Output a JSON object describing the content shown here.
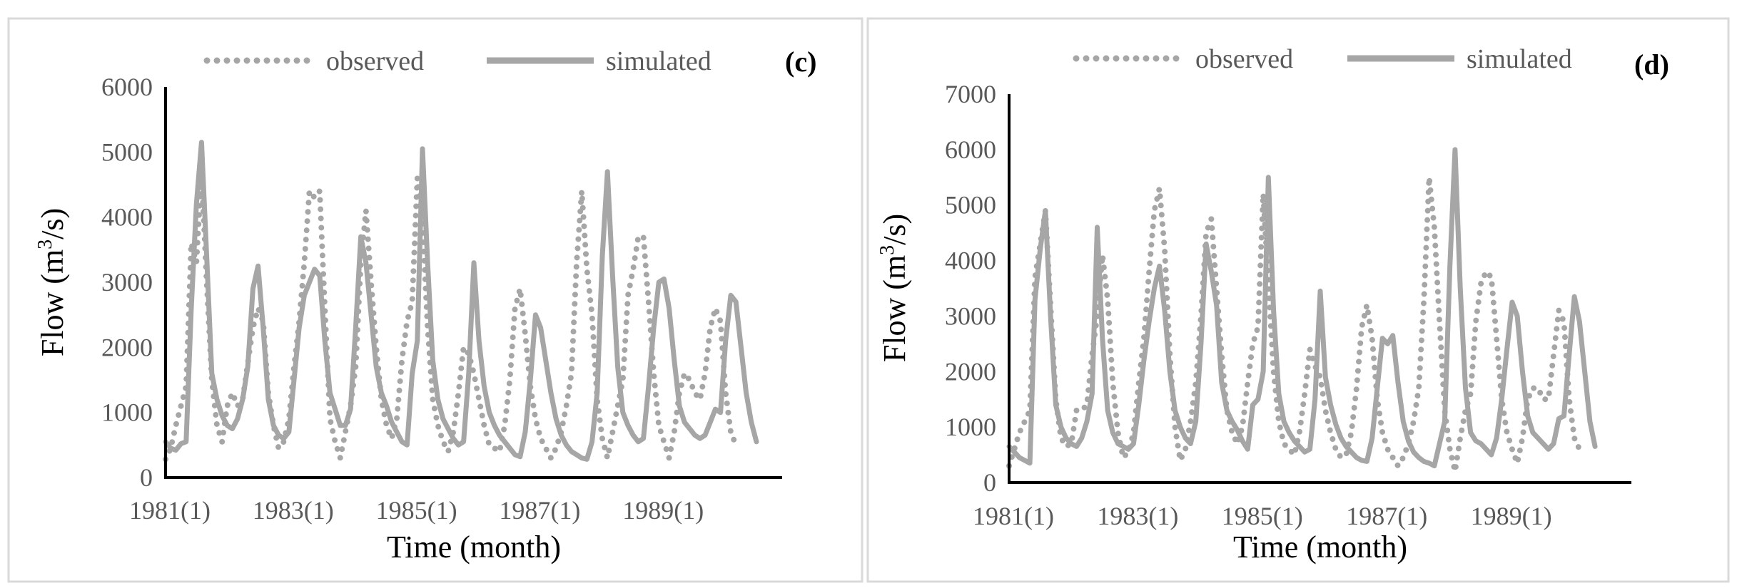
{
  "colors": {
    "series": "#a6a6a6",
    "axis": "#000000",
    "tick": "#595959",
    "frame": "#d9d9d9"
  },
  "chart_data": [
    {
      "panel_label": "(c)",
      "type": "line",
      "xlabel": "Time (month)",
      "ylabel": {
        "base": "Flow (m",
        "sup": "3",
        "tail": "/s)"
      },
      "ylim": [
        0,
        6000
      ],
      "yticks": [
        "0",
        "1000",
        "2000",
        "3000",
        "4000",
        "5000",
        "6000"
      ],
      "xlim": [
        0,
        120
      ],
      "xticks": [
        {
          "at": 0,
          "label": "1981(1)"
        },
        {
          "at": 24,
          "label": "1983(1)"
        },
        {
          "at": 48,
          "label": "1985(1)"
        },
        {
          "at": 72,
          "label": "1987(1)"
        },
        {
          "at": 96,
          "label": "1989(1)"
        }
      ],
      "legend": {
        "placement": "top",
        "items": [
          "observed",
          "simulated"
        ]
      },
      "series": [
        {
          "name": "observed",
          "style": "dotted",
          "values": [
            280,
            450,
            800,
            1100,
            1400,
            3600,
            3300,
            4700,
            3000,
            1500,
            800,
            550,
            1100,
            1300,
            1100,
            1200,
            1750,
            2300,
            2600,
            2400,
            1300,
            800,
            450,
            550,
            900,
            1700,
            2400,
            3300,
            4400,
            4300,
            4400,
            2600,
            900,
            550,
            300,
            700,
            1100,
            1700,
            3300,
            4100,
            3000,
            2000,
            1200,
            800,
            600,
            900,
            1800,
            2400,
            2700,
            4600,
            3900,
            2300,
            1200,
            800,
            550,
            400,
            700,
            1300,
            2000,
            1900,
            1600,
            1200,
            800,
            500,
            450,
            400,
            800,
            1500,
            2600,
            2900,
            2200,
            1400,
            900,
            600,
            450,
            300,
            450,
            700,
            1100,
            1600,
            3300,
            4400,
            3200,
            2500,
            1200,
            600,
            300,
            700,
            1100,
            1500,
            2800,
            3200,
            3700,
            3700,
            2700,
            1600,
            800,
            550,
            300,
            700,
            1300,
            1600,
            1500,
            1300,
            1200,
            1600,
            2300,
            2600,
            2400,
            1300,
            700,
            500
          ]
        },
        {
          "name": "simulated",
          "style": "solid",
          "values": [
            550,
            450,
            420,
            520,
            550,
            2600,
            4200,
            5150,
            3400,
            1600,
            1200,
            950,
            800,
            750,
            900,
            1200,
            1700,
            2900,
            3250,
            2300,
            1200,
            800,
            650,
            600,
            700,
            1500,
            2300,
            2800,
            3000,
            3200,
            3100,
            2100,
            1300,
            1050,
            800,
            800,
            1050,
            2300,
            3700,
            3300,
            2500,
            1700,
            1300,
            1100,
            850,
            700,
            550,
            500,
            1600,
            2100,
            5050,
            3300,
            1800,
            1200,
            900,
            750,
            600,
            500,
            550,
            1600,
            3300,
            2100,
            1400,
            1000,
            800,
            650,
            550,
            450,
            350,
            320,
            700,
            1500,
            2500,
            2300,
            1800,
            1300,
            900,
            650,
            500,
            400,
            350,
            300,
            280,
            550,
            1300,
            3400,
            4700,
            3100,
            1700,
            1000,
            800,
            650,
            550,
            600,
            1400,
            2300,
            3000,
            3050,
            2600,
            1800,
            1100,
            850,
            750,
            650,
            600,
            650,
            850,
            1050,
            1000,
            2100,
            2800,
            2700,
            2000,
            1300,
            850,
            550
          ]
        }
      ]
    },
    {
      "panel_label": "(d)",
      "type": "line",
      "xlabel": "Time (month)",
      "ylabel": {
        "base": "Flow (m",
        "sup": "3",
        "tail": "/s)"
      },
      "ylim": [
        0,
        7000
      ],
      "yticks": [
        "0",
        "1000",
        "2000",
        "3000",
        "4000",
        "5000",
        "6000",
        "7000"
      ],
      "xlim": [
        0,
        120
      ],
      "xticks": [
        {
          "at": 0,
          "label": "1981(1)"
        },
        {
          "at": 24,
          "label": "1983(1)"
        },
        {
          "at": 48,
          "label": "1985(1)"
        },
        {
          "at": 72,
          "label": "1987(1)"
        },
        {
          "at": 96,
          "label": "1989(1)"
        }
      ],
      "legend": {
        "placement": "top",
        "items": [
          "observed",
          "simulated"
        ]
      },
      "series": [
        {
          "name": "observed",
          "style": "dotted",
          "values": [
            300,
            600,
            900,
            1100,
            1300,
            3700,
            4300,
            4900,
            3200,
            1500,
            800,
            650,
            700,
            1300,
            1300,
            1400,
            2300,
            3000,
            4100,
            3300,
            1800,
            900,
            450,
            550,
            900,
            1800,
            2600,
            3800,
            4900,
            5300,
            4200,
            2300,
            1000,
            400,
            600,
            1100,
            1800,
            3000,
            4500,
            4750,
            3500,
            2300,
            1300,
            900,
            700,
            1000,
            1800,
            2500,
            2800,
            5200,
            3600,
            2000,
            1100,
            700,
            600,
            500,
            900,
            1600,
            2400,
            2100,
            1900,
            1300,
            900,
            600,
            450,
            500,
            900,
            1700,
            2800,
            3200,
            2600,
            1500,
            900,
            600,
            450,
            300,
            450,
            700,
            1100,
            1700,
            3300,
            5500,
            4600,
            2900,
            1300,
            600,
            200,
            800,
            1300,
            1600,
            2900,
            3600,
            3800,
            3700,
            2600,
            1500,
            900,
            600,
            350,
            800,
            1500,
            1700,
            1700,
            1500,
            1500,
            2300,
            3100,
            2900,
            1500,
            800,
            600,
            600
          ]
        },
        {
          "name": "simulated",
          "style": "solid",
          "values": [
            650,
            550,
            450,
            400,
            350,
            3300,
            4200,
            4900,
            3000,
            1400,
            1000,
            800,
            700,
            650,
            800,
            1100,
            1600,
            4600,
            2600,
            1300,
            900,
            700,
            650,
            600,
            700,
            1400,
            2200,
            2900,
            3500,
            3900,
            3100,
            2000,
            1300,
            1000,
            800,
            700,
            1100,
            2500,
            4300,
            3800,
            3200,
            1800,
            1300,
            1100,
            950,
            750,
            600,
            1400,
            1500,
            2000,
            5500,
            3100,
            1600,
            1100,
            900,
            750,
            650,
            550,
            600,
            1500,
            3450,
            1900,
            1400,
            1050,
            800,
            650,
            550,
            450,
            400,
            380,
            800,
            1700,
            2600,
            2500,
            2650,
            1800,
            1100,
            750,
            550,
            450,
            380,
            350,
            300,
            700,
            1100,
            3900,
            6000,
            3500,
            1700,
            900,
            750,
            700,
            600,
            500,
            800,
            1500,
            2400,
            3250,
            3000,
            2000,
            1200,
            900,
            800,
            700,
            600,
            700,
            1150,
            1200,
            2300,
            3350,
            2900,
            2000,
            1100,
            650
          ]
        }
      ]
    }
  ]
}
